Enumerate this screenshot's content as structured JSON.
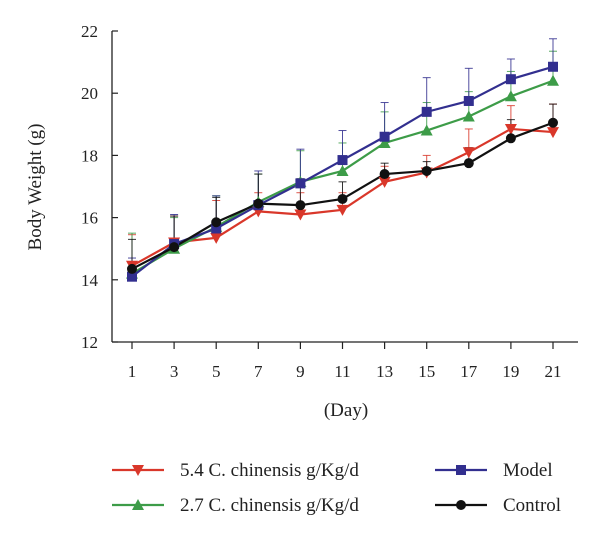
{
  "chart_data": {
    "type": "line",
    "xlabel": "(Day)",
    "ylabel": "Body Weight (g)",
    "x": [
      1,
      3,
      5,
      7,
      9,
      11,
      13,
      15,
      17,
      19,
      21
    ],
    "x_ticks": [
      "1",
      "3",
      "5",
      "7",
      "9",
      "11",
      "13",
      "15",
      "17",
      "19",
      "21"
    ],
    "ylim": [
      12,
      22
    ],
    "y_ticks": [
      "12",
      "14",
      "16",
      "18",
      "20",
      "22"
    ],
    "grid": false,
    "legend_position": "bottom",
    "series": [
      {
        "name": "5.4 C. chinensis g/Kg/d",
        "color": "#d9372a",
        "marker": "triangle-down",
        "values": [
          14.45,
          15.2,
          15.35,
          16.2,
          16.1,
          16.25,
          17.15,
          17.45,
          18.1,
          18.85,
          18.75
        ],
        "errors": [
          1.0,
          0.85,
          1.2,
          0.6,
          0.7,
          0.55,
          0.5,
          0.55,
          0.75,
          0.75,
          0.9
        ]
      },
      {
        "name": "2.7 C. chinensis g/Kg/d",
        "color": "#3d9c48",
        "marker": "triangle-up",
        "values": [
          14.2,
          15.0,
          15.7,
          16.5,
          17.15,
          17.5,
          18.4,
          18.8,
          19.25,
          19.9,
          20.4
        ],
        "errors": [
          1.3,
          1.0,
          1.0,
          0.9,
          1.0,
          0.9,
          1.0,
          0.9,
          0.8,
          0.8,
          0.95
        ]
      },
      {
        "name": "Model",
        "color": "#322f8f",
        "marker": "square",
        "values": [
          14.1,
          15.15,
          15.65,
          16.4,
          17.1,
          17.85,
          18.6,
          19.4,
          19.75,
          20.45,
          20.85
        ],
        "errors": [
          0.6,
          0.95,
          1.05,
          1.1,
          1.1,
          0.95,
          1.1,
          1.1,
          1.05,
          0.65,
          0.9
        ]
      },
      {
        "name": "Control",
        "color": "#111111",
        "marker": "circle",
        "values": [
          14.35,
          15.05,
          15.85,
          16.45,
          16.4,
          16.6,
          17.4,
          17.5,
          17.75,
          18.55,
          19.05
        ],
        "errors": [
          0.95,
          1.0,
          0.8,
          0.95,
          0.85,
          0.55,
          0.35,
          0.3,
          0.5,
          0.6,
          0.6
        ]
      }
    ],
    "legend_layout": [
      [
        "5.4 C. chinensis g/Kg/d",
        "Model"
      ],
      [
        "2.7 C. chinensis g/Kg/d",
        "Control"
      ]
    ]
  }
}
